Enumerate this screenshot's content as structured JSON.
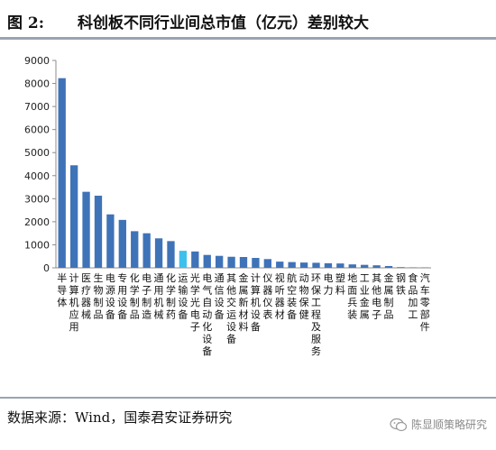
{
  "header": {
    "fig_label": "图 2:",
    "title": "科创板不同行业间总市值（亿元）差别较大"
  },
  "footer": {
    "source": "数据来源：Wind，国泰君安证券研究",
    "watermark": "陈显顺策略研究",
    "watermark_icon": "wechat-icon"
  },
  "colors": {
    "bar": "#3f73b8",
    "highlight": "#3ec0ec",
    "axis": "#8c8c8c"
  },
  "chart_data": {
    "type": "bar",
    "title": "",
    "xlabel": "",
    "ylabel": "",
    "ylim": [
      0,
      9000
    ],
    "yticks": [
      "0",
      "1000",
      "2000",
      "3000",
      "4000",
      "5000",
      "6000",
      "7000",
      "8000",
      "9000"
    ],
    "grid": false,
    "legend": "none",
    "categories": [
      "半导体",
      "计算机应用",
      "医疗器械",
      "生物制品",
      "电源设备",
      "专用设备",
      "化学制品",
      "电子制造",
      "通用机械",
      "化学制药",
      "运输设备",
      "光学光电子",
      "电气自动化设备",
      "通信设备",
      "其他交运设备",
      "金属新材料",
      "计算机设备",
      "仪器仪表",
      "视听器材",
      "航空装备",
      "动物保健",
      "环保工程及服务",
      "电力",
      "塑料",
      "地面兵装",
      "工业金属",
      "其他电子",
      "金属制品",
      "钢铁",
      "食品加工",
      "汽车零部件"
    ],
    "highlight_index": 10,
    "values": [
      8230,
      4450,
      3300,
      3130,
      2320,
      2080,
      1590,
      1500,
      1280,
      1160,
      740,
      710,
      560,
      520,
      480,
      470,
      430,
      380,
      270,
      250,
      230,
      220,
      200,
      190,
      150,
      130,
      110,
      80,
      30,
      20,
      15
    ]
  }
}
